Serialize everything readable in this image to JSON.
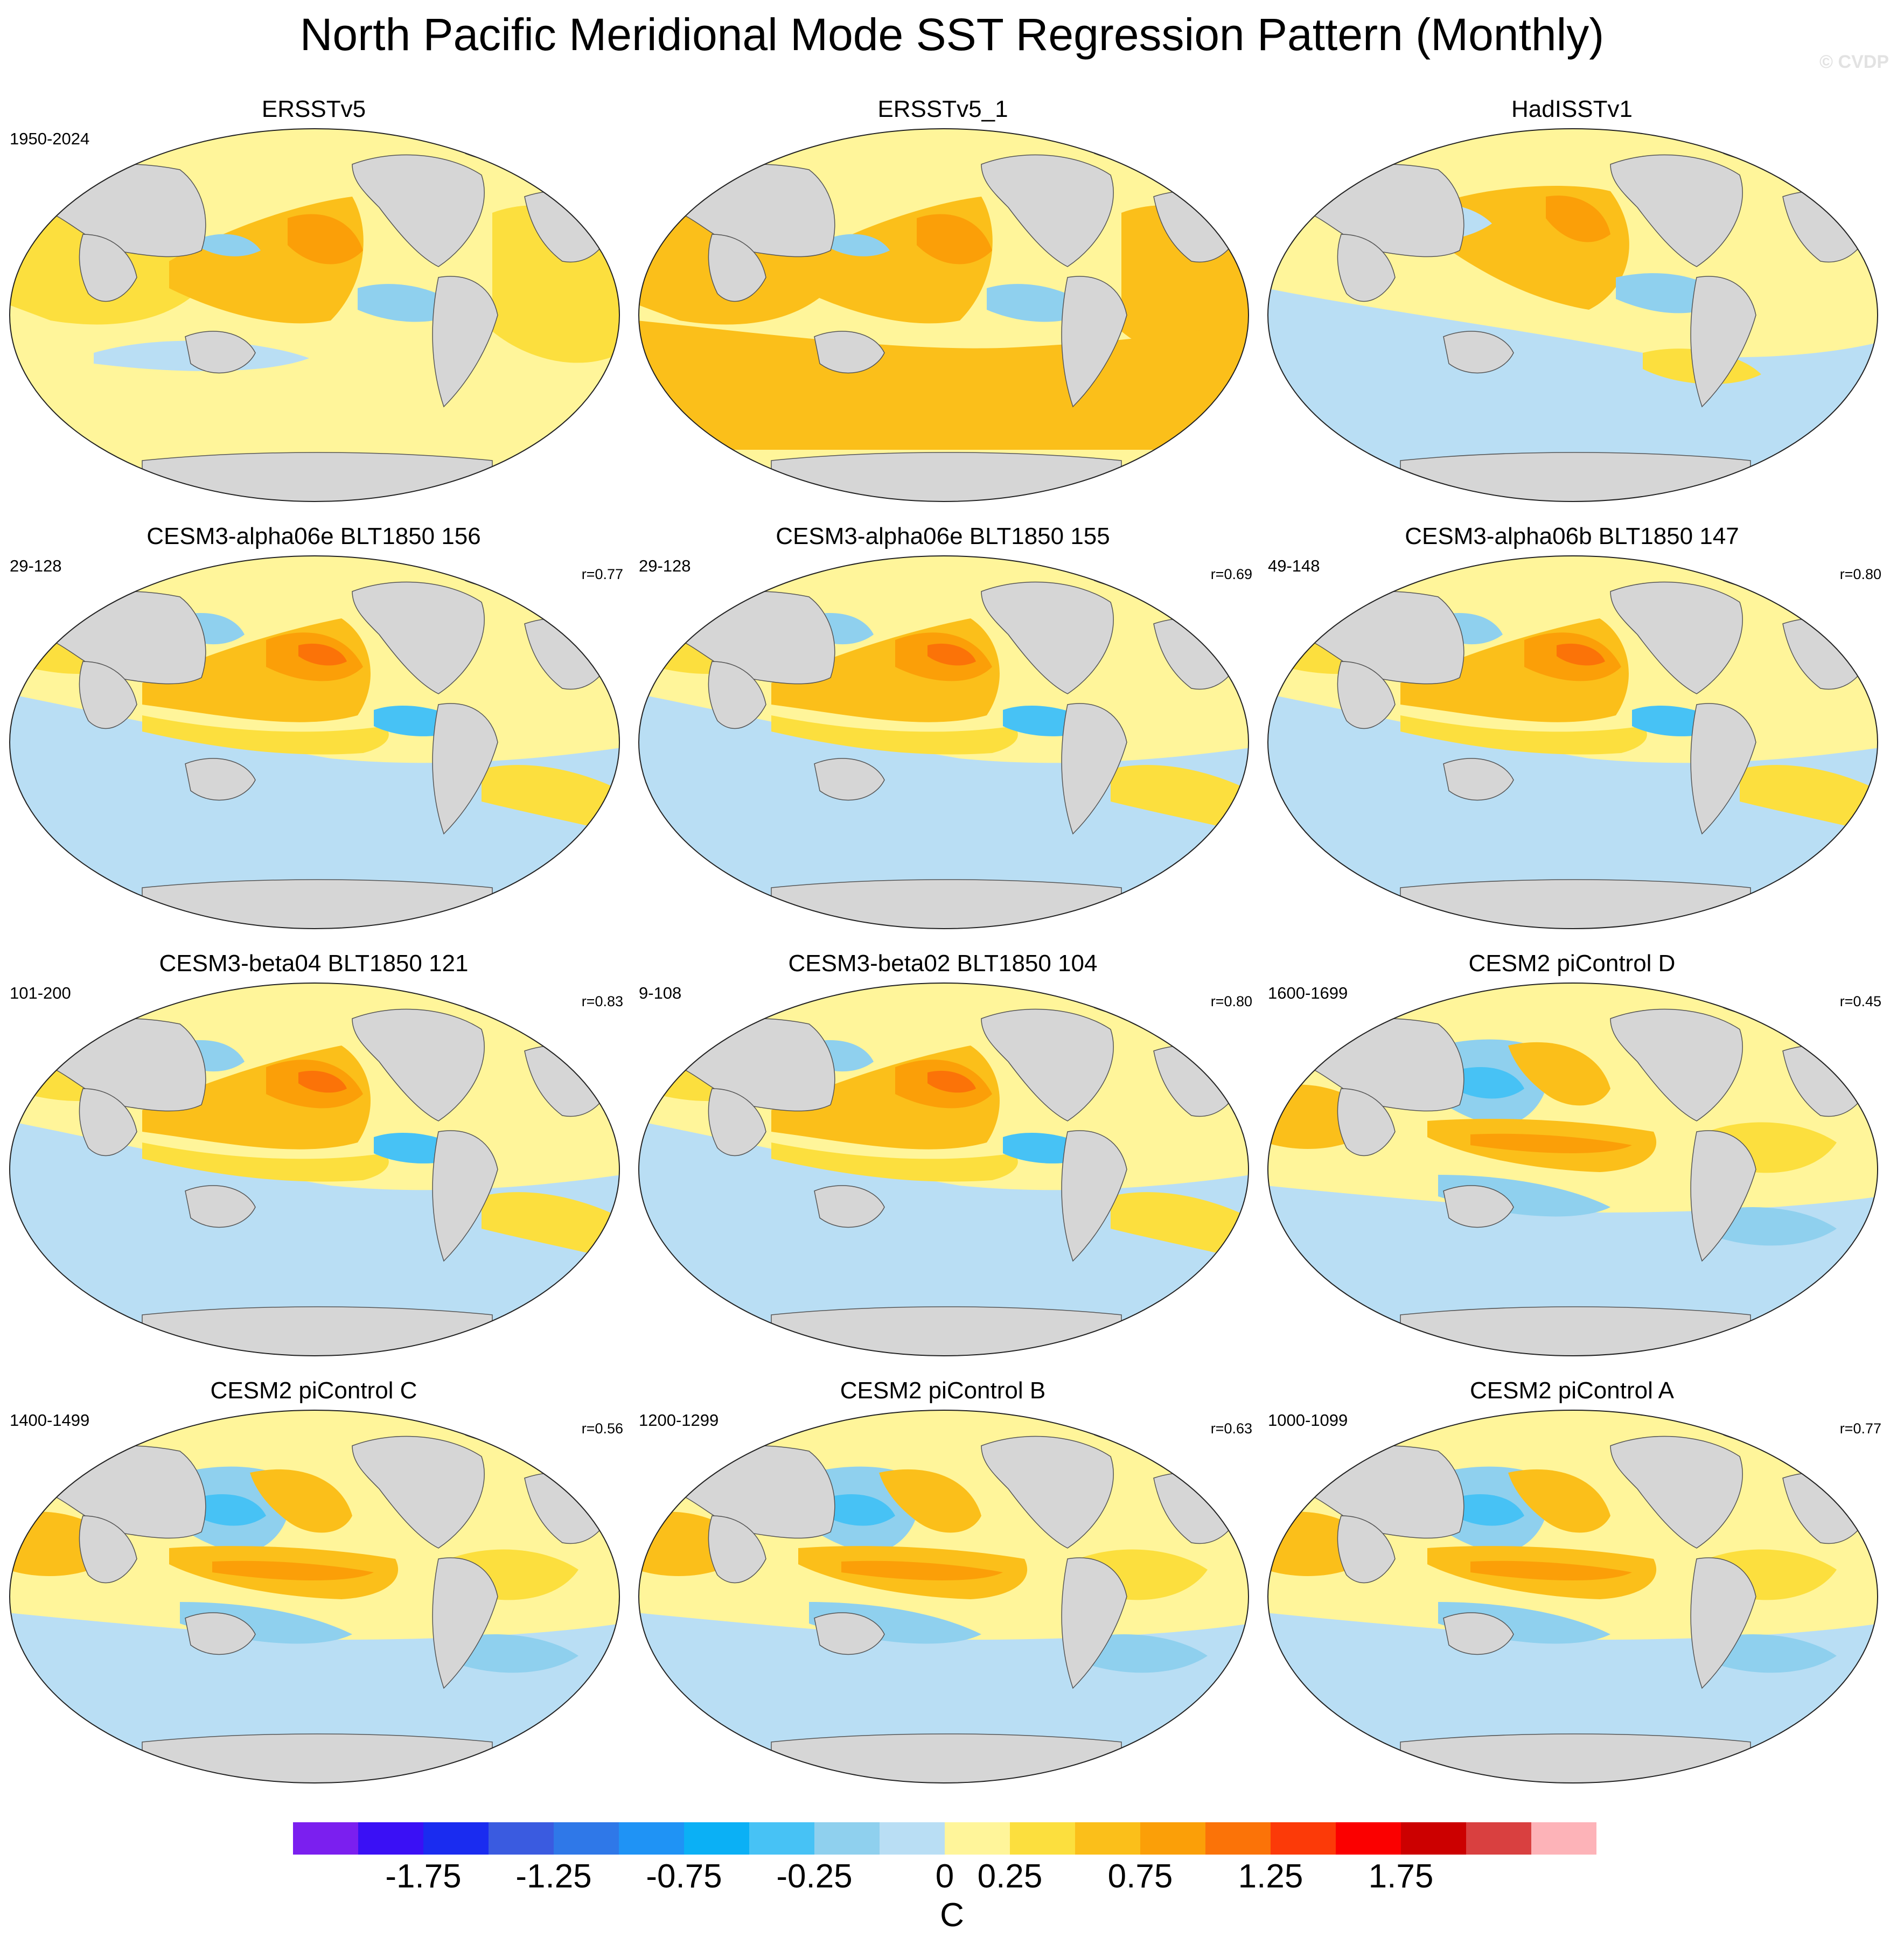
{
  "title": "North Pacific Meridional Mode SST Regression Pattern (Monthly)",
  "watermark": "© CVDP",
  "panels": [
    {
      "title": "ERSSTv5",
      "period": "1950-2024",
      "corr": "",
      "variant": "obs1"
    },
    {
      "title": "ERSSTv5_1",
      "period": "",
      "corr": "",
      "variant": "obs2"
    },
    {
      "title": "HadISSTv1",
      "period": "",
      "corr": "",
      "variant": "obs3"
    },
    {
      "title": "CESM3-alpha06e BLT1850 156",
      "period": "29-128",
      "corr": "r=0.77",
      "variant": "model"
    },
    {
      "title": "CESM3-alpha06e BLT1850 155",
      "period": "29-128",
      "corr": "r=0.69",
      "variant": "model"
    },
    {
      "title": "CESM3-alpha06b BLT1850 147",
      "period": "49-148",
      "corr": "r=0.80",
      "variant": "model"
    },
    {
      "title": "CESM3-beta04 BLT1850 121",
      "period": "101-200",
      "corr": "r=0.83",
      "variant": "model"
    },
    {
      "title": "CESM3-beta02 BLT1850 104",
      "period": "9-108",
      "corr": "r=0.80",
      "variant": "model"
    },
    {
      "title": "CESM2 piControl D",
      "period": "1600-1699",
      "corr": "r=0.45",
      "variant": "cesm2"
    },
    {
      "title": "CESM2 piControl C",
      "period": "1400-1499",
      "corr": "r=0.56",
      "variant": "cesm2"
    },
    {
      "title": "CESM2 piControl B",
      "period": "1200-1299",
      "corr": "r=0.63",
      "variant": "cesm2"
    },
    {
      "title": "CESM2 piControl A",
      "period": "1000-1099",
      "corr": "r=0.77",
      "variant": "cesm2"
    }
  ],
  "colorbar": {
    "colors": [
      "#7b1fef",
      "#3a10f5",
      "#1a2cf0",
      "#3a5be0",
      "#2f78e8",
      "#1f93f5",
      "#0bb0f5",
      "#47c2f5",
      "#8fd0ee",
      "#b9def4",
      "#fff59a",
      "#fcdf3e",
      "#fbbf1a",
      "#fb9f08",
      "#fb7308",
      "#fc3a08",
      "#fb0000",
      "#cc0000",
      "#d94040",
      "#fdb3b8"
    ],
    "ticks": [
      "-1.75",
      "-1.25",
      "-0.75",
      "-0.25",
      "0",
      "0.25",
      "0.75",
      "1.25",
      "1.75"
    ],
    "unit": "C"
  },
  "palette": {
    "land": "#d6d6d6",
    "base": "#fff59a",
    "pos1": "#fcdf3e",
    "pos2": "#fbbf1a",
    "pos3": "#fb9f08",
    "pos4": "#fb7308",
    "neg1": "#b9def4",
    "neg2": "#8fd0ee",
    "neg3": "#47c2f5"
  }
}
